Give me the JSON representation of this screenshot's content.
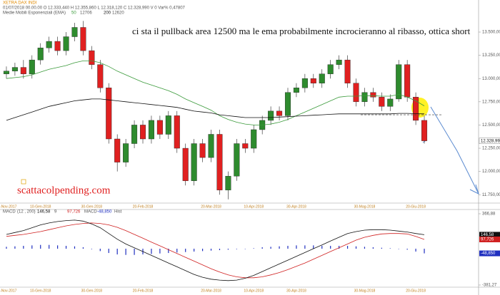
{
  "header": {
    "instrument": "XETRA DAX INDI",
    "quote": "01/07/2018 00.00.00  O 12.333,440  H 12.355,860  L 12.318,120  C 12.328,990  V 0  Var% 0,47807"
  },
  "annotation": "ci sta il pullback area 12500 ma le ema probabilmente incrocieranno al ribasso, ottica short",
  "watermark": "scattacolpending.com",
  "chart_data": [
    {
      "type": "candlestick",
      "subtitle": "Medie Mobili Esponenziali (EMA)",
      "categories": [
        "20-Nov-2017",
        null,
        null,
        null,
        "10-Gen-2018",
        null,
        null,
        null,
        null,
        null,
        "30-Gen-2018",
        null,
        null,
        null,
        null,
        null,
        "20-Feb-2018",
        null,
        null,
        null,
        null,
        null,
        null,
        null,
        "20-Mar-2018",
        null,
        null,
        null,
        null,
        "10-Apr-2018",
        null,
        null,
        null,
        null,
        "30-Apr-2018",
        null,
        null,
        null,
        null,
        null,
        null,
        null,
        "30-Mag-2018",
        null,
        null,
        null,
        null,
        null,
        "20-Giu-2018",
        null
      ],
      "open": [
        13050,
        13080,
        13120,
        13050,
        13200,
        13330,
        13400,
        13300,
        13450,
        13550,
        13300,
        13150,
        12900,
        12350,
        12100,
        12300,
        12500,
        12350,
        12550,
        12400,
        12600,
        12250,
        11900,
        12300,
        12150,
        12400,
        11800,
        11950,
        12300,
        12250,
        12450,
        12550,
        12650,
        12600,
        12850,
        12900,
        13000,
        12950,
        13050,
        13150,
        13200,
        12950,
        12750,
        12850,
        12800,
        12700,
        12780,
        13150,
        12800,
        12550
      ],
      "high": [
        13130,
        13170,
        13200,
        13250,
        13380,
        13450,
        13450,
        13500,
        13600,
        13620,
        13350,
        13200,
        12950,
        12400,
        12350,
        12550,
        12550,
        12600,
        12600,
        12650,
        12650,
        12300,
        12350,
        12350,
        12450,
        12450,
        12000,
        12350,
        12350,
        12500,
        12600,
        12700,
        12700,
        12900,
        12950,
        13050,
        13050,
        13100,
        13200,
        13250,
        13250,
        13000,
        12900,
        12900,
        12850,
        12830,
        13200,
        13200,
        12850,
        12600
      ],
      "low": [
        13000,
        13030,
        13000,
        13000,
        13150,
        13280,
        13250,
        13250,
        13400,
        13250,
        13100,
        12850,
        12300,
        12000,
        12050,
        12250,
        12300,
        12300,
        12350,
        12350,
        12200,
        11850,
        11850,
        12100,
        12100,
        11750,
        11700,
        11900,
        12200,
        12200,
        12400,
        12500,
        12550,
        12550,
        12800,
        12850,
        12900,
        12900,
        13000,
        13100,
        12900,
        12700,
        12700,
        12750,
        12650,
        12650,
        12750,
        12750,
        12500,
        12300
      ],
      "close": [
        13080,
        13120,
        13050,
        13200,
        13330,
        13400,
        13300,
        13450,
        13550,
        13300,
        13150,
        12900,
        12350,
        12100,
        12300,
        12500,
        12350,
        12550,
        12400,
        12600,
        12250,
        11900,
        12300,
        12150,
        12400,
        11800,
        11950,
        12300,
        12250,
        12450,
        12550,
        12650,
        12600,
        12850,
        12900,
        13000,
        12950,
        13050,
        13150,
        13200,
        12950,
        12750,
        12850,
        12800,
        12700,
        12780,
        13150,
        12800,
        12550,
        12330
      ],
      "up_color": "#2e8b2e",
      "down_color": "#e02020",
      "series": [
        {
          "name": "50",
          "value_label": "12706",
          "color": "#3a9a3a",
          "values": [
            13000,
            13010,
            13020,
            13040,
            13070,
            13100,
            13120,
            13140,
            13170,
            13190,
            13190,
            13170,
            13130,
            13080,
            13040,
            13000,
            12960,
            12930,
            12900,
            12870,
            12830,
            12780,
            12740,
            12700,
            12660,
            12600,
            12560,
            12530,
            12510,
            12500,
            12500,
            12510,
            12530,
            12560,
            12600,
            12640,
            12680,
            12720,
            12760,
            12800,
            12810,
            12810,
            12815,
            12815,
            12810,
            12810,
            12830,
            12800,
            12760,
            12706
          ]
        },
        {
          "name": "200",
          "value_label": "12620",
          "color": "#111111",
          "values": [
            12550,
            12580,
            12610,
            12640,
            12670,
            12700,
            12720,
            12740,
            12760,
            12770,
            12780,
            12780,
            12770,
            12760,
            12750,
            12740,
            12730,
            12720,
            12710,
            12700,
            12690,
            12670,
            12650,
            12640,
            12630,
            12610,
            12600,
            12590,
            12580,
            12580,
            12580,
            12580,
            12585,
            12590,
            12595,
            12600,
            12605,
            12610,
            12615,
            12620,
            12620,
            12620,
            12620,
            12620,
            12620,
            12620,
            12625,
            12625,
            12622,
            12620
          ]
        }
      ],
      "dashed_level": 12610,
      "last_price": {
        "value": 12328.99,
        "label": "12.328,990"
      },
      "ylim": [
        11660,
        13845
      ],
      "yticks": [
        {
          "value": 11750,
          "label": "11.750,000"
        },
        {
          "value": 12000,
          "label": "12.000,000"
        },
        {
          "value": 12250,
          "label": "12.250,000"
        },
        {
          "value": 12500,
          "label": "12.500,000"
        },
        {
          "value": 12750,
          "label": "12.750,000"
        },
        {
          "value": 13000,
          "label": "13.000,000"
        },
        {
          "value": 13250,
          "label": "13.250,000"
        },
        {
          "value": 13500,
          "label": "13.500,000"
        }
      ]
    },
    {
      "type": "macd",
      "title": "MACD",
      "params": "(12 , 200)",
      "categories": [
        "20-Nov-2017",
        null,
        null,
        null,
        "10-Gen-2018",
        null,
        null,
        null,
        null,
        null,
        "30-Gen-2018",
        null,
        null,
        null,
        null,
        null,
        "20-Feb-2018",
        null,
        null,
        null,
        null,
        null,
        null,
        null,
        "20-Mar-2018",
        null,
        null,
        null,
        null,
        "10-Apr-2018",
        null,
        null,
        null,
        null,
        "30-Apr-2018",
        null,
        null,
        null,
        null,
        null,
        null,
        null,
        "30-Mag-2018",
        null,
        null,
        null,
        null,
        null,
        "20-Giu-2018",
        null
      ],
      "series": [
        {
          "name": "9",
          "value_label": "146,58",
          "color": "#111111",
          "values": [
            150,
            170,
            190,
            220,
            250,
            270,
            285,
            295,
            300,
            290,
            260,
            220,
            160,
            100,
            50,
            10,
            -30,
            -70,
            -110,
            -150,
            -190,
            -230,
            -270,
            -300,
            -320,
            -330,
            -335,
            -330,
            -310,
            -280,
            -240,
            -200,
            -160,
            -120,
            -80,
            -40,
            0,
            40,
            80,
            120,
            160,
            180,
            195,
            200,
            200,
            195,
            185,
            175,
            160,
            146.58
          ]
        },
        {
          "name": "MACD",
          "value_label": "97,726",
          "color": "#d02020",
          "values": [
            130,
            140,
            150,
            165,
            180,
            200,
            220,
            240,
            255,
            265,
            270,
            265,
            250,
            225,
            190,
            150,
            110,
            70,
            30,
            -10,
            -50,
            -90,
            -130,
            -170,
            -210,
            -245,
            -275,
            -295,
            -305,
            -305,
            -295,
            -275,
            -250,
            -220,
            -185,
            -150,
            -110,
            -70,
            -30,
            10,
            50,
            90,
            120,
            140,
            155,
            160,
            160,
            155,
            130,
            97.726
          ]
        },
        {
          "name": "Hist",
          "value_label": "-48,850",
          "color": "#2030c0",
          "values": [
            20,
            25,
            30,
            35,
            40,
            40,
            35,
            30,
            25,
            15,
            -5,
            -25,
            -45,
            -60,
            -65,
            -65,
            -60,
            -55,
            -50,
            -45,
            -40,
            -35,
            -30,
            -25,
            -20,
            -15,
            -10,
            -5,
            0,
            5,
            15,
            20,
            25,
            30,
            35,
            35,
            35,
            30,
            30,
            30,
            30,
            25,
            20,
            15,
            10,
            5,
            0,
            -10,
            -30,
            -48.85
          ]
        }
      ],
      "ylim": [
        -381.27,
        366.88
      ],
      "yticks": [
        {
          "value": -381.27,
          "label": "-381,27"
        },
        {
          "value": 366.88,
          "label": "366,88"
        }
      ]
    }
  ]
}
